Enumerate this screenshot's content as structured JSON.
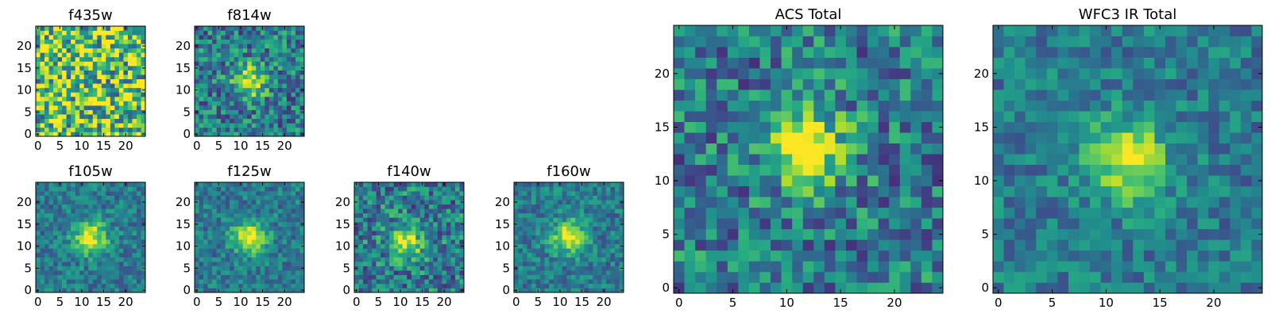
{
  "chart_data": [
    {
      "type": "heatmap",
      "title": "f435w",
      "xlabel": "",
      "ylabel": "",
      "xlim": [
        -0.5,
        24.5
      ],
      "ylim": [
        -0.5,
        24.5
      ],
      "xticks": [
        0,
        5,
        10,
        15,
        20
      ],
      "yticks": [
        0,
        5,
        10,
        15,
        20
      ],
      "grid_size": [
        25,
        25
      ],
      "colormap": "viridis",
      "grid": false,
      "source_peak": null,
      "noise_level": "high"
    },
    {
      "type": "heatmap",
      "title": "f814w",
      "xlabel": "",
      "ylabel": "",
      "xlim": [
        -0.5,
        24.5
      ],
      "ylim": [
        -0.5,
        24.5
      ],
      "xticks": [
        0,
        5,
        10,
        15,
        20
      ],
      "yticks": [
        0,
        5,
        10,
        15,
        20
      ],
      "grid_size": [
        25,
        25
      ],
      "colormap": "viridis",
      "grid": false,
      "source_peak": [
        12,
        12
      ],
      "noise_level": "medium"
    },
    {
      "type": "heatmap",
      "title": "f105w",
      "xlabel": "",
      "ylabel": "",
      "xlim": [
        -0.5,
        24.5
      ],
      "ylim": [
        -0.5,
        24.5
      ],
      "xticks": [
        0,
        5,
        10,
        15,
        20
      ],
      "yticks": [
        0,
        5,
        10,
        15,
        20
      ],
      "grid_size": [
        25,
        25
      ],
      "colormap": "viridis",
      "grid": false,
      "source_peak": [
        12,
        12
      ],
      "noise_level": "low"
    },
    {
      "type": "heatmap",
      "title": "f125w",
      "xlabel": "",
      "ylabel": "",
      "xlim": [
        -0.5,
        24.5
      ],
      "ylim": [
        -0.5,
        24.5
      ],
      "xticks": [
        0,
        5,
        10,
        15,
        20
      ],
      "yticks": [
        0,
        5,
        10,
        15,
        20
      ],
      "grid_size": [
        25,
        25
      ],
      "colormap": "viridis",
      "grid": false,
      "source_peak": [
        12,
        12
      ],
      "noise_level": "low"
    },
    {
      "type": "heatmap",
      "title": "f140w",
      "xlabel": "",
      "ylabel": "",
      "xlim": [
        -0.5,
        24.5
      ],
      "ylim": [
        -0.5,
        24.5
      ],
      "xticks": [
        0,
        5,
        10,
        15,
        20
      ],
      "yticks": [
        0,
        5,
        10,
        15,
        20
      ],
      "grid_size": [
        25,
        25
      ],
      "colormap": "viridis",
      "grid": false,
      "source_peak": [
        11,
        11
      ],
      "noise_level": "medium"
    },
    {
      "type": "heatmap",
      "title": "f160w",
      "xlabel": "",
      "ylabel": "",
      "xlim": [
        -0.5,
        24.5
      ],
      "ylim": [
        -0.5,
        24.5
      ],
      "xticks": [
        0,
        5,
        10,
        15,
        20
      ],
      "yticks": [
        0,
        5,
        10,
        15,
        20
      ],
      "grid_size": [
        25,
        25
      ],
      "colormap": "viridis",
      "grid": false,
      "source_peak": [
        12,
        12
      ],
      "noise_level": "low"
    },
    {
      "type": "heatmap",
      "title": "ACS Total",
      "xlabel": "",
      "ylabel": "",
      "xlim": [
        -0.5,
        24.5
      ],
      "ylim": [
        -0.5,
        24.5
      ],
      "xticks": [
        0,
        5,
        10,
        15,
        20
      ],
      "yticks": [
        0,
        5,
        10,
        15,
        20
      ],
      "grid_size": [
        25,
        25
      ],
      "colormap": "viridis",
      "grid": false,
      "source_peak": [
        12,
        13
      ],
      "noise_level": "medium"
    },
    {
      "type": "heatmap",
      "title": "WFC3 IR Total",
      "xlabel": "",
      "ylabel": "",
      "xlim": [
        -0.5,
        24.5
      ],
      "ylim": [
        -0.5,
        24.5
      ],
      "xticks": [
        0,
        5,
        10,
        15,
        20
      ],
      "yticks": [
        0,
        5,
        10,
        15,
        20
      ],
      "grid_size": [
        25,
        25
      ],
      "colormap": "viridis",
      "grid": false,
      "source_peak": [
        12,
        12
      ],
      "noise_level": "low"
    }
  ]
}
